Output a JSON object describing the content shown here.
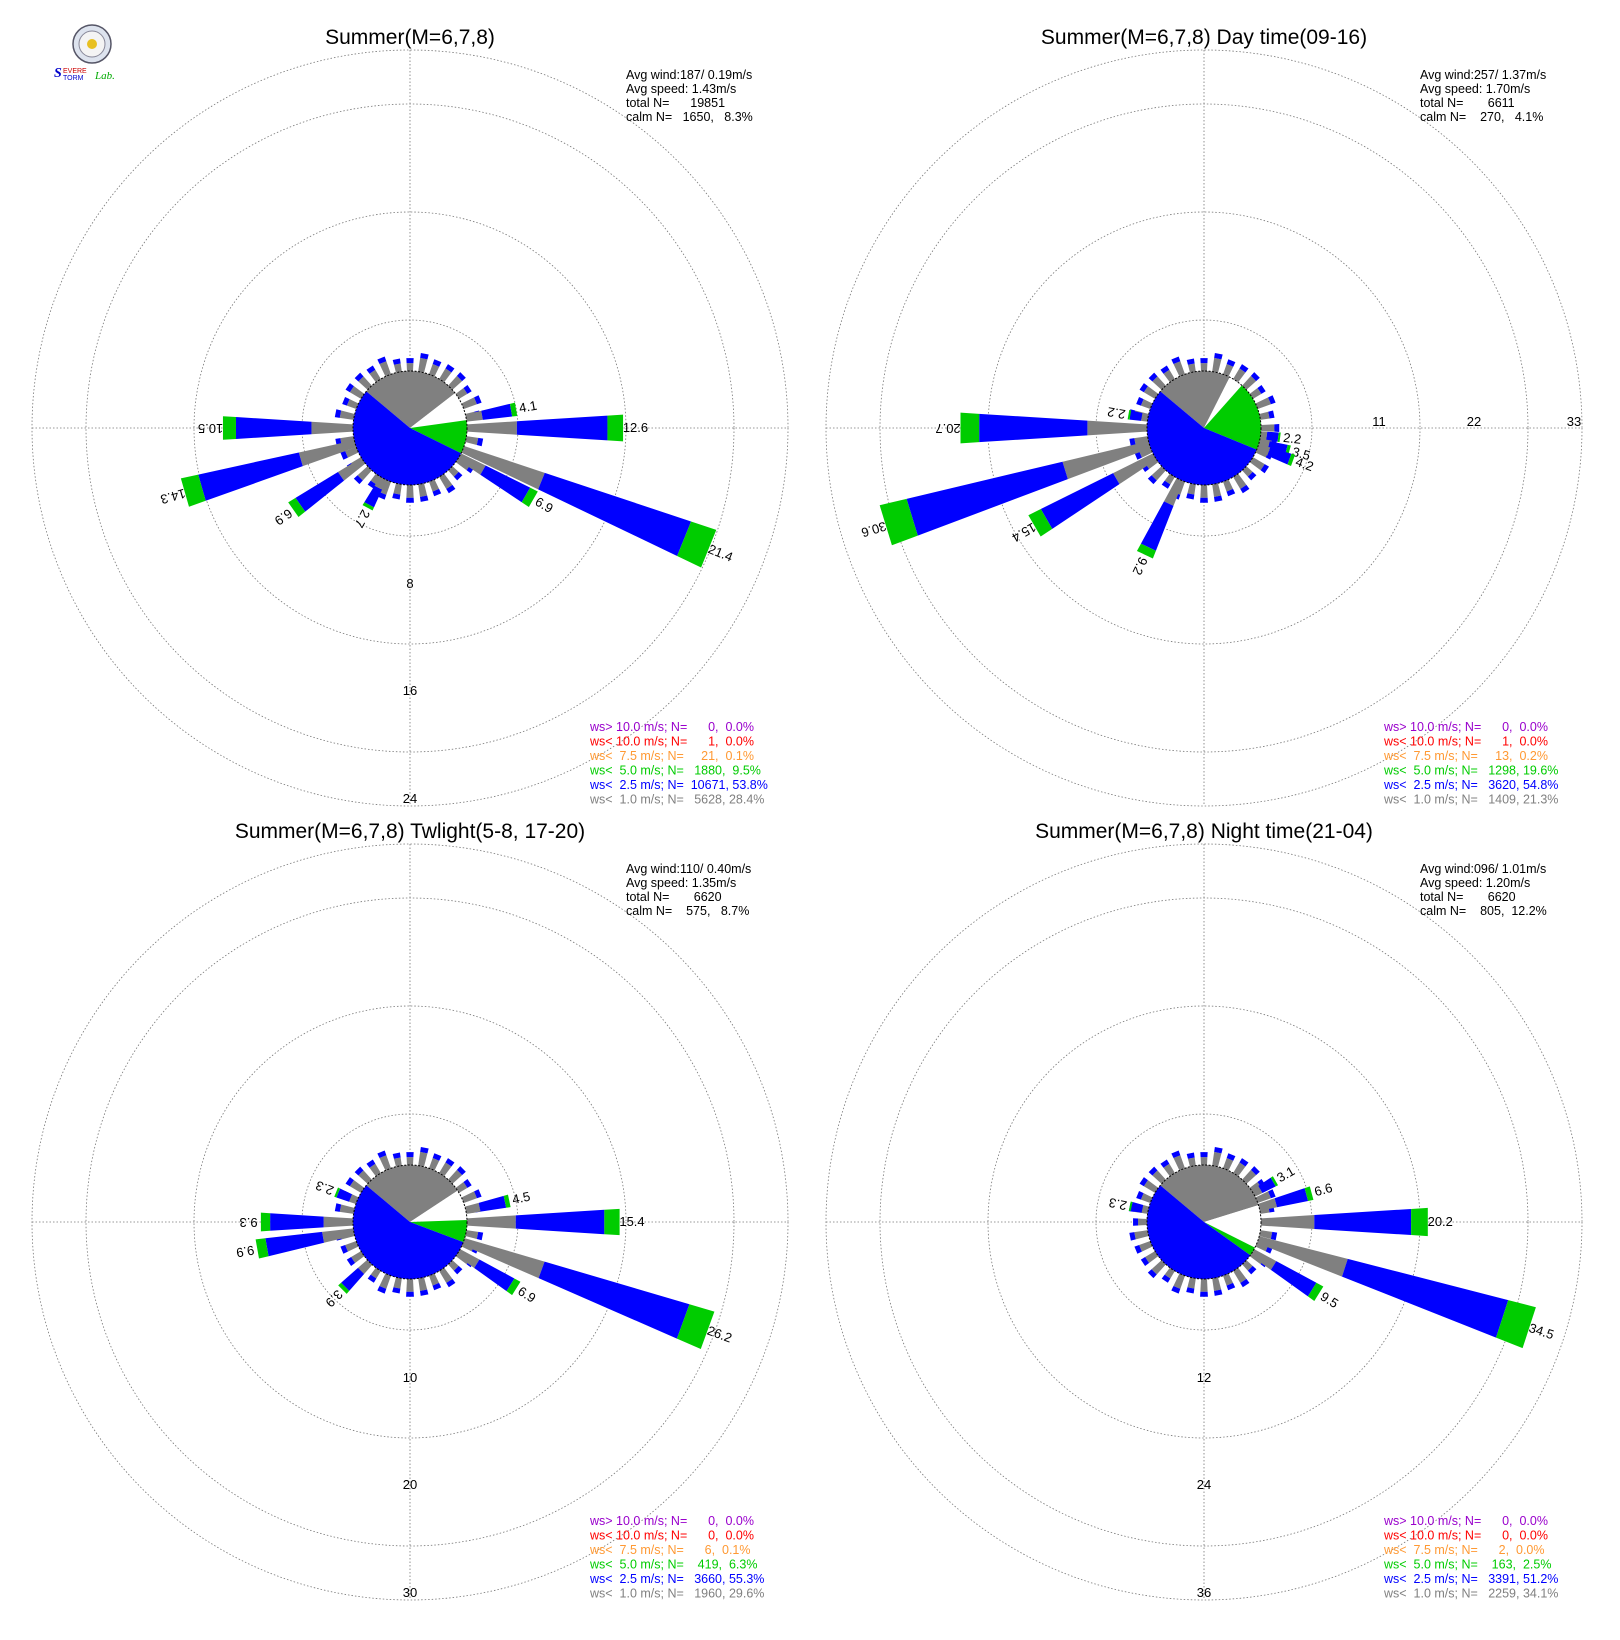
{
  "logo": {
    "text": "Severe Storm Lab."
  },
  "legend_colors": {
    "ws_gt_10": "#9900cc",
    "ws_lt_10": "#ff0000",
    "ws_lt_7_5": "#ff9933",
    "ws_lt_5": "#00cc00",
    "ws_lt_2_5": "#0000ff",
    "ws_lt_1": "#808080"
  },
  "chart_data": [
    {
      "type": "wind-rose",
      "title": "Summer(M=6,7,8)",
      "stats": [
        "Avg wind:187/ 0.19m/s",
        "Avg speed: 1.43m/s",
        "total N=      19851",
        "calm N=   1650,   8.3%"
      ],
      "ring_labels": [
        "8",
        "16",
        "24"
      ],
      "ring_values": [
        8,
        16,
        24
      ],
      "legend": [
        "ws> 10.0 m/s; N=      0,  0.0%",
        "ws< 10.0 m/s; N=      1,  0.0%",
        "ws<  7.5 m/s; N=     21,  0.1%",
        "ws<  5.0 m/s; N=   1880,  9.5%",
        "ws<  2.5 m/s; N=  10671, 53.8%",
        "ws<  1.0 m/s; N=   5628, 28.4%"
      ],
      "pie": {
        "calm": 8.3,
        "ws_lt_1": 28.4,
        "ws_lt_2_5": 53.8,
        "ws_lt_5": 9.5
      },
      "labeled_petals": [
        {
          "dir_deg": 80,
          "total": 4.1,
          "label": "4.1"
        },
        {
          "dir_deg": 90,
          "total": 12.6,
          "label": "12.6"
        },
        {
          "dir_deg": 112,
          "total": 21.4,
          "label": "21.4"
        },
        {
          "dir_deg": 120,
          "total": 6.9,
          "label": "6.9"
        },
        {
          "dir_deg": 208,
          "total": 2.7,
          "label": "2.7"
        },
        {
          "dir_deg": 235,
          "total": 6.9,
          "label": "6.9"
        },
        {
          "dir_deg": 254,
          "total": 14.3,
          "label": "14.3"
        },
        {
          "dir_deg": 270,
          "total": 10.5,
          "label": "10.5"
        }
      ]
    },
    {
      "type": "wind-rose",
      "title": "Summer(M=6,7,8) Day time(09-16)",
      "stats": [
        "Avg wind:257/ 1.37m/s",
        "Avg speed: 1.70m/s",
        "total N=       6611",
        "calm N=    270,   4.1%"
      ],
      "ring_labels": [
        "11",
        "22",
        "33"
      ],
      "ring_values": [
        11,
        22,
        33
      ],
      "legend": [
        "ws> 10.0 m/s; N=      0,  0.0%",
        "ws< 10.0 m/s; N=      1,  0.0%",
        "ws<  7.5 m/s; N=     13,  0.2%",
        "ws<  5.0 m/s; N=   1298, 19.6%",
        "ws<  2.5 m/s; N=   3620, 54.8%",
        "ws<  1.0 m/s; N=   1409, 21.3%"
      ],
      "pie": {
        "calm": 4.1,
        "ws_lt_1": 21.3,
        "ws_lt_2_5": 54.8,
        "ws_lt_5": 19.6
      },
      "labeled_petals": [
        {
          "dir_deg": 97,
          "total": 2.2,
          "label": "2.2"
        },
        {
          "dir_deg": 105,
          "total": 3.5,
          "label": "3.5"
        },
        {
          "dir_deg": 110,
          "total": 4.2,
          "label": "4.2"
        },
        {
          "dir_deg": 205,
          "total": 9.2,
          "label": "9.2"
        },
        {
          "dir_deg": 240,
          "total": 15.4,
          "label": "15.4"
        },
        {
          "dir_deg": 253,
          "total": 30.6,
          "label": "30.6"
        },
        {
          "dir_deg": 270,
          "total": 20.7,
          "label": "20.7"
        },
        {
          "dir_deg": 280,
          "total": 2.2,
          "label": "2.2"
        }
      ]
    },
    {
      "type": "wind-rose",
      "title": "Summer(M=6,7,8) Twlight(5-8, 17-20)",
      "stats": [
        "Avg wind:110/ 0.40m/s",
        "Avg speed: 1.35m/s",
        "total N=       6620",
        "calm N=    575,   8.7%"
      ],
      "ring_labels": [
        "10",
        "20",
        "30"
      ],
      "ring_values": [
        10,
        20,
        30
      ],
      "legend": [
        "ws> 10.0 m/s; N=      0,  0.0%",
        "ws< 10.0 m/s; N=      0,  0.0%",
        "ws<  7.5 m/s; N=      6,  0.1%",
        "ws<  5.0 m/s; N=    419,  6.3%",
        "ws<  2.5 m/s; N=   3660, 55.3%",
        "ws<  1.0 m/s; N=   1960, 29.6%"
      ],
      "pie": {
        "calm": 8.7,
        "ws_lt_1": 29.6,
        "ws_lt_2_5": 55.3,
        "ws_lt_5": 6.3
      },
      "labeled_petals": [
        {
          "dir_deg": 78,
          "total": 4.5,
          "label": "4.5"
        },
        {
          "dir_deg": 90,
          "total": 15.4,
          "label": "15.4"
        },
        {
          "dir_deg": 110,
          "total": 26.2,
          "label": "26.2"
        },
        {
          "dir_deg": 122,
          "total": 6.9,
          "label": "6.9"
        },
        {
          "dir_deg": 225,
          "total": 3.9,
          "label": "3.9"
        },
        {
          "dir_deg": 260,
          "total": 9.9,
          "label": "9.9"
        },
        {
          "dir_deg": 270,
          "total": 9.3,
          "label": "9.3"
        },
        {
          "dir_deg": 292,
          "total": 2.3,
          "label": "2.3"
        }
      ]
    },
    {
      "type": "wind-rose",
      "title": "Summer(M=6,7,8) Night time(21-04)",
      "stats": [
        "Avg wind:096/ 1.01m/s",
        "Avg speed: 1.20m/s",
        "total N=       6620",
        "calm N=    805,  12.2%"
      ],
      "ring_labels": [
        "12",
        "24",
        "36"
      ],
      "ring_values": [
        12,
        24,
        36
      ],
      "legend": [
        "ws> 10.0 m/s; N=      0,  0.0%",
        "ws< 10.0 m/s; N=      0,  0.0%",
        "ws<  7.5 m/s; N=      2,  0.0%",
        "ws<  5.0 m/s; N=    163,  2.5%",
        "ws<  2.5 m/s; N=   3391, 51.2%",
        "ws<  1.0 m/s; N=   2259, 34.1%"
      ],
      "pie": {
        "calm": 12.2,
        "ws_lt_1": 34.1,
        "ws_lt_2_5": 51.2,
        "ws_lt_5": 2.5
      },
      "labeled_petals": [
        {
          "dir_deg": 60,
          "total": 3.1,
          "label": "3.1"
        },
        {
          "dir_deg": 75,
          "total": 6.6,
          "label": "6.6"
        },
        {
          "dir_deg": 90,
          "total": 20.2,
          "label": "20.2"
        },
        {
          "dir_deg": 108,
          "total": 34.5,
          "label": "34.5"
        },
        {
          "dir_deg": 122,
          "total": 9.5,
          "label": "9.5"
        },
        {
          "dir_deg": 282,
          "total": 2.3,
          "label": "2.3"
        }
      ]
    }
  ]
}
